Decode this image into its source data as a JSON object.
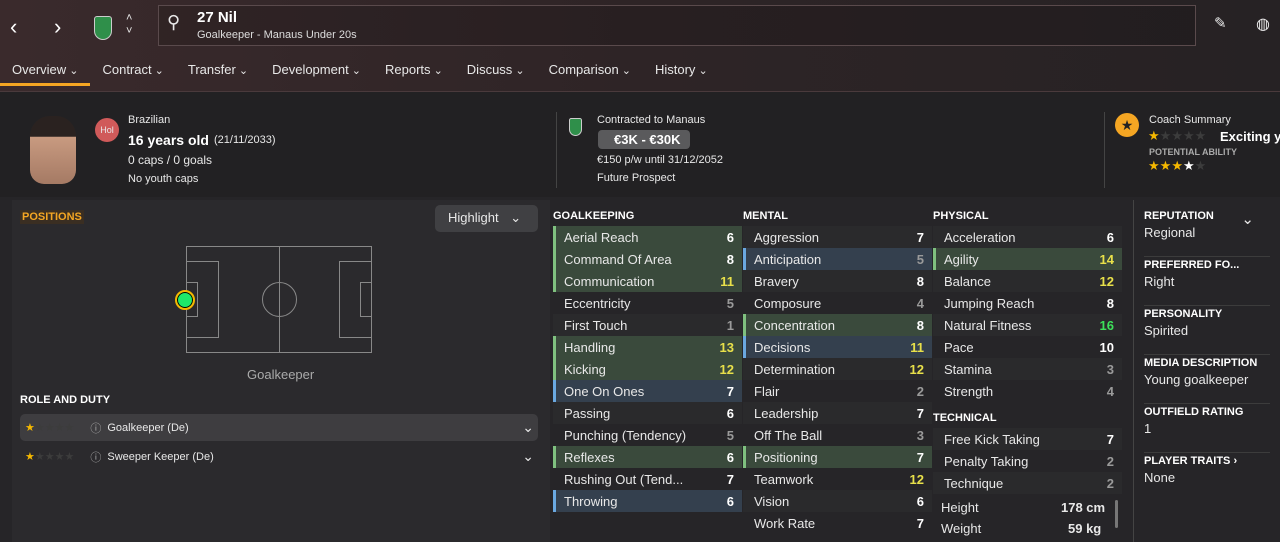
{
  "header": {
    "name": "27 Nil",
    "subtitle": "Goalkeeper - Manaus Under 20s",
    "icons": [
      "back-icon",
      "forward-icon",
      "club-crest",
      "search-icon",
      "edit-icon",
      "globe-icon"
    ]
  },
  "tabs": [
    "Overview",
    "Contract",
    "Transfer",
    "Development",
    "Reports",
    "Discuss",
    "Comparison",
    "History"
  ],
  "profile": {
    "nation_badge": "Hol",
    "nationality": "Brazilian",
    "age": "16 years old",
    "dob": "(21/11/2033)",
    "caps": "0 caps / 0 goals",
    "youth": "No youth caps",
    "contract_title": "Contracted to Manaus",
    "value": "€3K - €30K",
    "wage": "€150 p/w until 31/12/2052",
    "status": "Future Prospect",
    "coach_title": "Coach Summary",
    "coach_text": "Exciting yo",
    "current_ability_stars": 1,
    "potential_label": "POTENTIAL ABILITY",
    "potential_ability_stars": 3.5
  },
  "positions": {
    "label": "POSITIONS",
    "highlight": "Highlight",
    "position_name": "Goalkeeper",
    "role_title": "ROLE AND DUTY",
    "roles": [
      {
        "name": "Goalkeeper (De)",
        "stars": 1
      },
      {
        "name": "Sweeper Keeper (De)",
        "stars": 1
      }
    ]
  },
  "attributes": [
    {
      "title": "GOALKEEPING",
      "rows": [
        [
          "Aerial Reach",
          6,
          "g"
        ],
        [
          "Command Of Area",
          8,
          "g"
        ],
        [
          "Communication",
          11,
          "g"
        ],
        [
          "Eccentricity",
          5,
          ""
        ],
        [
          "First Touch",
          1,
          ""
        ],
        [
          "Handling",
          13,
          "g"
        ],
        [
          "Kicking",
          12,
          "g"
        ],
        [
          "One On Ones",
          7,
          "b"
        ],
        [
          "Passing",
          6,
          ""
        ],
        [
          "Punching (Tendency)",
          5,
          ""
        ],
        [
          "Reflexes",
          6,
          "g"
        ],
        [
          "Rushing Out (Tend...",
          7,
          ""
        ],
        [
          "Throwing",
          6,
          "b"
        ]
      ]
    },
    {
      "title": "MENTAL",
      "rows": [
        [
          "Aggression",
          7,
          ""
        ],
        [
          "Anticipation",
          5,
          "b"
        ],
        [
          "Bravery",
          8,
          ""
        ],
        [
          "Composure",
          4,
          ""
        ],
        [
          "Concentration",
          8,
          "g"
        ],
        [
          "Decisions",
          11,
          "b"
        ],
        [
          "Determination",
          12,
          ""
        ],
        [
          "Flair",
          2,
          ""
        ],
        [
          "Leadership",
          7,
          ""
        ],
        [
          "Off The Ball",
          3,
          ""
        ],
        [
          "Positioning",
          7,
          "g"
        ],
        [
          "Teamwork",
          12,
          ""
        ],
        [
          "Vision",
          6,
          ""
        ],
        [
          "Work Rate",
          7,
          ""
        ]
      ]
    },
    {
      "title": "PHYSICAL",
      "rows": [
        [
          "Acceleration",
          6,
          ""
        ],
        [
          "Agility",
          14,
          "g"
        ],
        [
          "Balance",
          12,
          ""
        ],
        [
          "Jumping Reach",
          8,
          ""
        ],
        [
          "Natural Fitness",
          16,
          ""
        ],
        [
          "Pace",
          10,
          ""
        ],
        [
          "Stamina",
          3,
          ""
        ],
        [
          "Strength",
          4,
          ""
        ]
      ]
    },
    {
      "title": "TECHNICAL",
      "rows": [
        [
          "Free Kick Taking",
          7,
          ""
        ],
        [
          "Penalty Taking",
          2,
          ""
        ],
        [
          "Technique",
          2,
          ""
        ]
      ]
    }
  ],
  "body": {
    "height_label": "Height",
    "height": "178 cm",
    "weight_label": "Weight",
    "weight": "59 kg"
  },
  "info": [
    {
      "label": "REPUTATION",
      "value": "Regional"
    },
    {
      "label": "PREFERRED FO...",
      "value": "Right"
    },
    {
      "label": "PERSONALITY",
      "value": "Spirited"
    },
    {
      "label": "MEDIA DESCRIPTION",
      "value": "Young goalkeeper"
    },
    {
      "label": "OUTFIELD RATING",
      "value": "1"
    },
    {
      "label": "PLAYER TRAITS ›",
      "value": "None"
    }
  ],
  "colors": {
    "accent": "#f5a623",
    "low": "#9a9a9a",
    "mid": "#ffffff",
    "high": "#e8e04a",
    "top": "#3de05a"
  }
}
